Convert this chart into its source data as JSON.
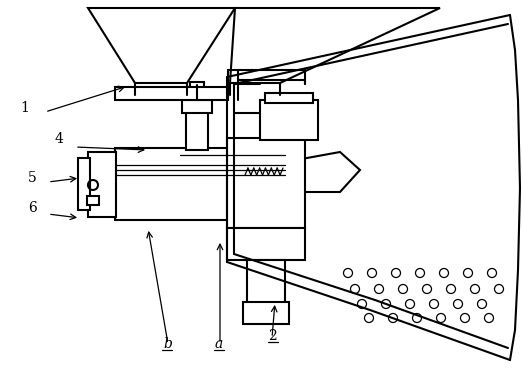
{
  "bg_color": "#ffffff",
  "line_color": "#000000",
  "lw": 1.5,
  "tlw": 0.9
}
